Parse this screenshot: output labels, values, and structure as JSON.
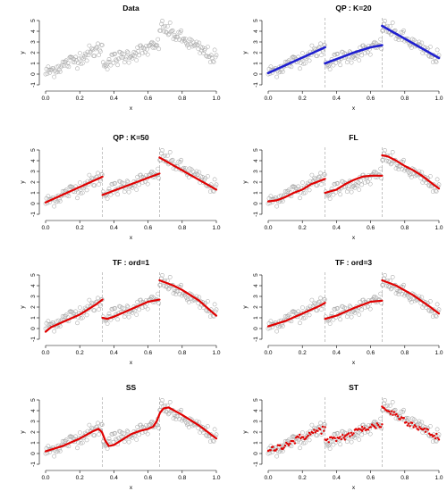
{
  "colors": {
    "background": "#ffffff",
    "observations": "#a9a9a9",
    "fit_blue": "#1f1fd0",
    "fit_red": "#e00000",
    "breakpoint": "#aaaaaa"
  },
  "chart_data": [
    {
      "type": "scatter",
      "title": "Data",
      "xlabel": "x",
      "ylabel": "y",
      "xlim": [
        0,
        1
      ],
      "ylim": [
        -1,
        5
      ],
      "xticks": [
        "0.0",
        "0.2",
        "0.4",
        "0.6",
        "0.8",
        "1.0"
      ],
      "yticks": [
        "-1",
        "0",
        "1",
        "2",
        "3",
        "4",
        "5"
      ],
      "breakpoints": [],
      "fit_style": "none",
      "fit_color": "",
      "fit_segments": []
    },
    {
      "type": "line",
      "title": "QP : K=20",
      "xlabel": "x",
      "ylabel": "y",
      "xlim": [
        0,
        1
      ],
      "ylim": [
        -1,
        5
      ],
      "xticks": [
        "0.0",
        "0.2",
        "0.4",
        "0.6",
        "0.8",
        "1.0"
      ],
      "yticks": [
        "-1",
        "0",
        "1",
        "2",
        "3",
        "4",
        "5"
      ],
      "breakpoints": [
        0.333,
        0.667
      ],
      "fit_style": "line",
      "fit_color": "#1f1fd0",
      "fit_segments": [
        [
          [
            0.0,
            0.1
          ],
          [
            0.333,
            2.5
          ]
        ],
        [
          [
            0.333,
            1.0
          ],
          [
            0.5,
            2.0
          ],
          [
            0.6,
            2.5
          ],
          [
            0.667,
            2.7
          ]
        ],
        [
          [
            0.667,
            4.5
          ],
          [
            1.0,
            1.5
          ]
        ]
      ]
    },
    {
      "type": "line",
      "title": "QP : K=50",
      "xlabel": "x",
      "ylabel": "y",
      "xlim": [
        0,
        1
      ],
      "ylim": [
        -1,
        5
      ],
      "xticks": [
        "0.0",
        "0.2",
        "0.4",
        "0.6",
        "0.8",
        "1.0"
      ],
      "yticks": [
        "-1",
        "0",
        "1",
        "2",
        "3",
        "4",
        "5"
      ],
      "breakpoints": [
        0.333,
        0.667
      ],
      "fit_style": "line",
      "fit_color": "#e00000",
      "fit_segments": [
        [
          [
            0.0,
            0.1
          ],
          [
            0.333,
            2.5
          ]
        ],
        [
          [
            0.333,
            0.8
          ],
          [
            0.5,
            1.8
          ],
          [
            0.667,
            2.8
          ]
        ],
        [
          [
            0.667,
            4.3
          ],
          [
            1.0,
            1.3
          ]
        ]
      ]
    },
    {
      "type": "line",
      "title": "FL",
      "xlabel": "x",
      "ylabel": "y",
      "xlim": [
        0,
        1
      ],
      "ylim": [
        -1,
        5
      ],
      "xticks": [
        "0.0",
        "0.2",
        "0.4",
        "0.6",
        "0.8",
        "1.0"
      ],
      "yticks": [
        "-1",
        "0",
        "1",
        "2",
        "3",
        "4",
        "5"
      ],
      "breakpoints": [
        0.333,
        0.667
      ],
      "fit_style": "line",
      "fit_color": "#e00000",
      "fit_segments": [
        [
          [
            0.0,
            0.2
          ],
          [
            0.05,
            0.3
          ],
          [
            0.1,
            0.6
          ],
          [
            0.15,
            1.0
          ],
          [
            0.2,
            1.3
          ],
          [
            0.25,
            1.8
          ],
          [
            0.3,
            2.1
          ],
          [
            0.333,
            2.3
          ]
        ],
        [
          [
            0.333,
            1.0
          ],
          [
            0.4,
            1.3
          ],
          [
            0.45,
            1.8
          ],
          [
            0.5,
            2.2
          ],
          [
            0.55,
            2.5
          ],
          [
            0.6,
            2.6
          ],
          [
            0.667,
            2.6
          ]
        ],
        [
          [
            0.667,
            4.5
          ],
          [
            0.7,
            4.4
          ],
          [
            0.75,
            4.0
          ],
          [
            0.8,
            3.5
          ],
          [
            0.85,
            3.1
          ],
          [
            0.9,
            2.6
          ],
          [
            0.95,
            2.0
          ],
          [
            1.0,
            1.4
          ]
        ]
      ]
    },
    {
      "type": "line",
      "title": "TF : ord=1",
      "xlabel": "x",
      "ylabel": "y",
      "xlim": [
        0,
        1
      ],
      "ylim": [
        -1,
        5
      ],
      "xticks": [
        "0.0",
        "0.2",
        "0.4",
        "0.6",
        "0.8",
        "1.0"
      ],
      "yticks": [
        "-1",
        "0",
        "1",
        "2",
        "3",
        "4",
        "5"
      ],
      "breakpoints": [
        0.333,
        0.667
      ],
      "fit_style": "line",
      "fit_color": "#e00000",
      "fit_segments": [
        [
          [
            0.0,
            -0.3
          ],
          [
            0.03,
            0.1
          ],
          [
            0.1,
            0.6
          ],
          [
            0.2,
            1.3
          ],
          [
            0.3,
            2.3
          ],
          [
            0.333,
            2.7
          ]
        ],
        [
          [
            0.333,
            1.0
          ],
          [
            0.36,
            0.9
          ],
          [
            0.4,
            1.1
          ],
          [
            0.5,
            1.8
          ],
          [
            0.6,
            2.5
          ],
          [
            0.667,
            2.7
          ]
        ],
        [
          [
            0.667,
            4.5
          ],
          [
            0.7,
            4.3
          ],
          [
            0.75,
            4.0
          ],
          [
            0.8,
            3.6
          ],
          [
            0.9,
            2.6
          ],
          [
            0.97,
            1.6
          ],
          [
            1.0,
            1.2
          ]
        ]
      ]
    },
    {
      "type": "line",
      "title": "TF : ord=3",
      "xlabel": "x",
      "ylabel": "y",
      "xlim": [
        0,
        1
      ],
      "ylim": [
        -1,
        5
      ],
      "xticks": [
        "0.0",
        "0.2",
        "0.4",
        "0.6",
        "0.8",
        "1.0"
      ],
      "yticks": [
        "-1",
        "0",
        "1",
        "2",
        "3",
        "4",
        "5"
      ],
      "breakpoints": [
        0.333,
        0.667
      ],
      "fit_style": "line",
      "fit_color": "#e00000",
      "fit_segments": [
        [
          [
            0.0,
            0.2
          ],
          [
            0.1,
            0.7
          ],
          [
            0.2,
            1.4
          ],
          [
            0.3,
            2.1
          ],
          [
            0.333,
            2.4
          ]
        ],
        [
          [
            0.333,
            0.9
          ],
          [
            0.4,
            1.2
          ],
          [
            0.5,
            1.9
          ],
          [
            0.6,
            2.5
          ],
          [
            0.667,
            2.6
          ]
        ],
        [
          [
            0.667,
            4.5
          ],
          [
            0.75,
            4.0
          ],
          [
            0.85,
            3.1
          ],
          [
            0.95,
            2.0
          ],
          [
            1.0,
            1.4
          ]
        ]
      ]
    },
    {
      "type": "line",
      "title": "SS",
      "xlabel": "x",
      "ylabel": "y",
      "xlim": [
        0,
        1
      ],
      "ylim": [
        -1,
        5
      ],
      "xticks": [
        "0.0",
        "0.2",
        "0.4",
        "0.6",
        "0.8",
        "1.0"
      ],
      "yticks": [
        "-1",
        "0",
        "1",
        "2",
        "3",
        "4",
        "5"
      ],
      "breakpoints": [
        0.333,
        0.667
      ],
      "fit_style": "line",
      "fit_color": "#e00000",
      "fit_segments": [
        [
          [
            0.0,
            0.2
          ],
          [
            0.1,
            0.7
          ],
          [
            0.2,
            1.4
          ],
          [
            0.28,
            2.1
          ],
          [
            0.31,
            2.3
          ],
          [
            0.33,
            2.0
          ],
          [
            0.35,
            1.2
          ],
          [
            0.37,
            0.7
          ],
          [
            0.4,
            0.8
          ],
          [
            0.45,
            1.3
          ],
          [
            0.5,
            1.8
          ],
          [
            0.55,
            2.1
          ],
          [
            0.6,
            2.3
          ],
          [
            0.63,
            2.5
          ],
          [
            0.65,
            3.0
          ],
          [
            0.67,
            3.8
          ],
          [
            0.69,
            4.2
          ],
          [
            0.72,
            4.3
          ],
          [
            0.8,
            3.6
          ],
          [
            0.9,
            2.6
          ],
          [
            1.0,
            1.4
          ]
        ]
      ]
    },
    {
      "type": "scatter",
      "title": "ST",
      "xlabel": "x",
      "ylabel": "y",
      "xlim": [
        0,
        1
      ],
      "ylim": [
        -1,
        5
      ],
      "xticks": [
        "0.0",
        "0.2",
        "0.4",
        "0.6",
        "0.8",
        "1.0"
      ],
      "yticks": [
        "-1",
        "0",
        "1",
        "2",
        "3",
        "4",
        "5"
      ],
      "breakpoints": [
        0.333,
        0.667
      ],
      "fit_style": "dots",
      "fit_color": "#e00000",
      "fit_segments": [
        [
          [
            0.0,
            0.2
          ],
          [
            0.333,
            2.4
          ]
        ],
        [
          [
            0.333,
            1.1
          ],
          [
            0.45,
            1.6
          ],
          [
            0.55,
            2.3
          ],
          [
            0.667,
            2.7
          ]
        ],
        [
          [
            0.667,
            4.3
          ],
          [
            1.0,
            1.4
          ]
        ]
      ]
    }
  ]
}
